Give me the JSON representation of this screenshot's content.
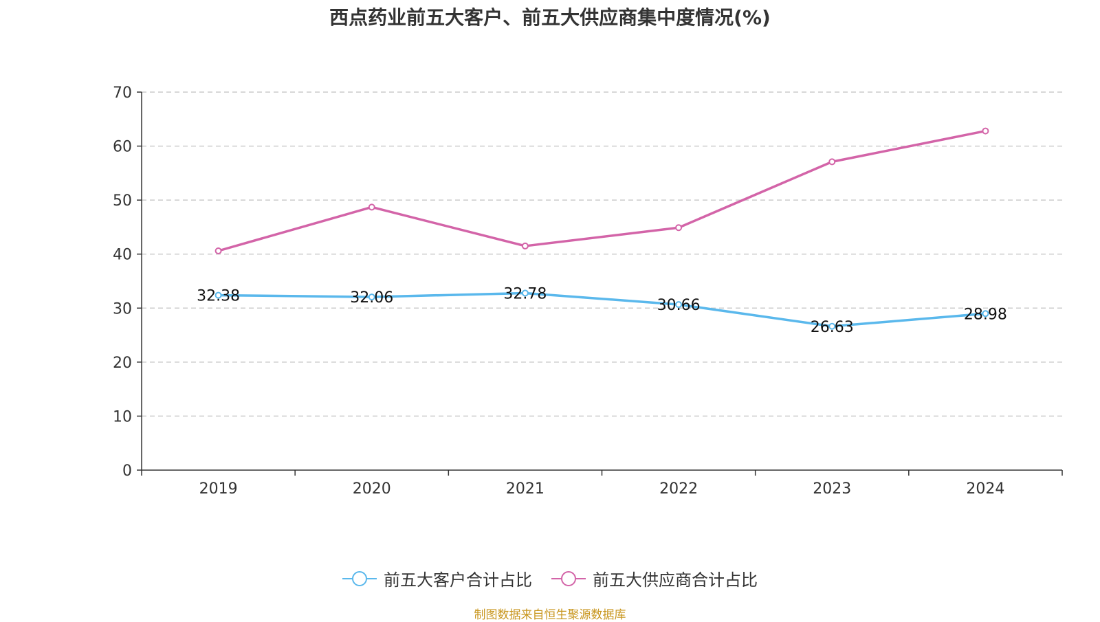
{
  "chart_data": {
    "type": "line",
    "title": "西点药业前五大客户、前五大供应商集中度情况(%)",
    "categories": [
      "2019",
      "2020",
      "2021",
      "2022",
      "2023",
      "2024"
    ],
    "ylim": [
      0,
      70
    ],
    "yticks": [
      0,
      10,
      20,
      30,
      40,
      50,
      60,
      70
    ],
    "grid": true,
    "legend_position": "bottom",
    "series": [
      {
        "name": "前五大客户合计占比",
        "color": "#5ab8ec",
        "values": [
          32.38,
          32.06,
          32.78,
          30.66,
          26.63,
          28.98
        ],
        "labels": [
          "32.38",
          "32.06",
          "32.78",
          "30.66",
          "26.63",
          "28.98"
        ]
      },
      {
        "name": "前五大供应商合计占比",
        "color": "#d364a8",
        "values": [
          40.6,
          48.7,
          41.5,
          44.9,
          57.1,
          62.8
        ]
      }
    ]
  },
  "footer": {
    "source": "制图数据来自恒生聚源数据库"
  }
}
